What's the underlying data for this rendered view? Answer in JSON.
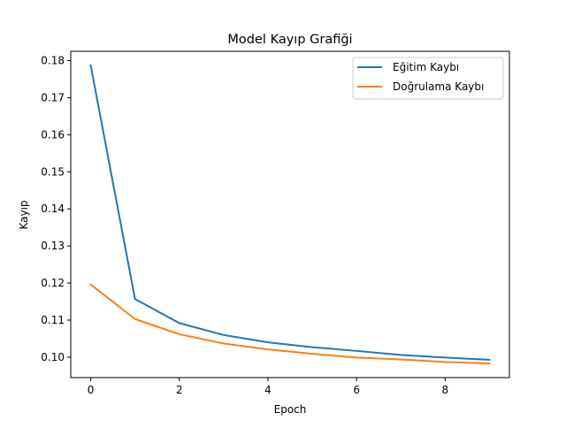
{
  "chart_data": {
    "type": "line",
    "title": "Model Kayıp Grafiği",
    "xlabel": "Epoch",
    "ylabel": "Kayıp",
    "x": [
      0,
      1,
      2,
      3,
      4,
      5,
      6,
      7,
      8,
      9
    ],
    "xlim": [
      -0.45,
      9.45
    ],
    "ylim": [
      0.0945,
      0.1825
    ],
    "xticks": [
      0,
      2,
      4,
      6,
      8
    ],
    "yticks": [
      0.1,
      0.11,
      0.12,
      0.13,
      0.14,
      0.15,
      0.16,
      0.17,
      0.18
    ],
    "ytick_labels": [
      "0.10",
      "0.11",
      "0.12",
      "0.13",
      "0.14",
      "0.15",
      "0.16",
      "0.17",
      "0.18"
    ],
    "grid": false,
    "legend_position": "upper right",
    "series": [
      {
        "name": "Eğitim Kaybı",
        "color": "#1f77b4",
        "values": [
          0.1787,
          0.1157,
          0.1092,
          0.106,
          0.104,
          0.1027,
          0.1017,
          0.1006,
          0.0999,
          0.0993
        ]
      },
      {
        "name": "Doğrulama Kaybı",
        "color": "#ff7f0e",
        "values": [
          0.1196,
          0.1103,
          0.1062,
          0.1037,
          0.1021,
          0.1009,
          0.0999,
          0.0994,
          0.0987,
          0.0983
        ]
      }
    ]
  }
}
